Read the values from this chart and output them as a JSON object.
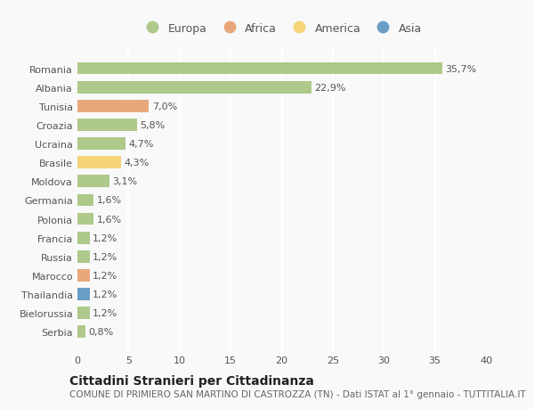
{
  "countries": [
    "Romania",
    "Albania",
    "Tunisia",
    "Croazia",
    "Ucraina",
    "Brasile",
    "Moldova",
    "Germania",
    "Polonia",
    "Francia",
    "Russia",
    "Marocco",
    "Thailandia",
    "Bielorussia",
    "Serbia"
  ],
  "values": [
    35.7,
    22.9,
    7.0,
    5.8,
    4.7,
    4.3,
    3.1,
    1.6,
    1.6,
    1.2,
    1.2,
    1.2,
    1.2,
    1.2,
    0.8
  ],
  "labels": [
    "35,7%",
    "22,9%",
    "7,0%",
    "5,8%",
    "4,7%",
    "4,3%",
    "3,1%",
    "1,6%",
    "1,6%",
    "1,2%",
    "1,2%",
    "1,2%",
    "1,2%",
    "1,2%",
    "0,8%"
  ],
  "continents": [
    "Europa",
    "Europa",
    "Africa",
    "Europa",
    "Europa",
    "America",
    "Europa",
    "Europa",
    "Europa",
    "Europa",
    "Europa",
    "Africa",
    "Asia",
    "Europa",
    "Europa"
  ],
  "continent_colors": {
    "Europa": "#aec98a",
    "Africa": "#e8a87c",
    "America": "#f5d47a",
    "Asia": "#6b9ec7"
  },
  "legend_items": [
    "Europa",
    "Africa",
    "America",
    "Asia"
  ],
  "legend_colors": [
    "#aec98a",
    "#e8a87c",
    "#f5d47a",
    "#6b9ec7"
  ],
  "xlim": [
    0,
    40
  ],
  "xticks": [
    0,
    5,
    10,
    15,
    20,
    25,
    30,
    35,
    40
  ],
  "title": "Cittadini Stranieri per Cittadinanza",
  "subtitle": "COMUNE DI PRIMIERO SAN MARTINO DI CASTROZZA (TN) - Dati ISTAT al 1° gennaio - TUTTITALIA.IT",
  "background_color": "#f9f9f9",
  "grid_color": "#ffffff",
  "bar_height": 0.65,
  "title_fontsize": 10,
  "subtitle_fontsize": 7.5,
  "label_fontsize": 8,
  "tick_fontsize": 8,
  "legend_fontsize": 9
}
